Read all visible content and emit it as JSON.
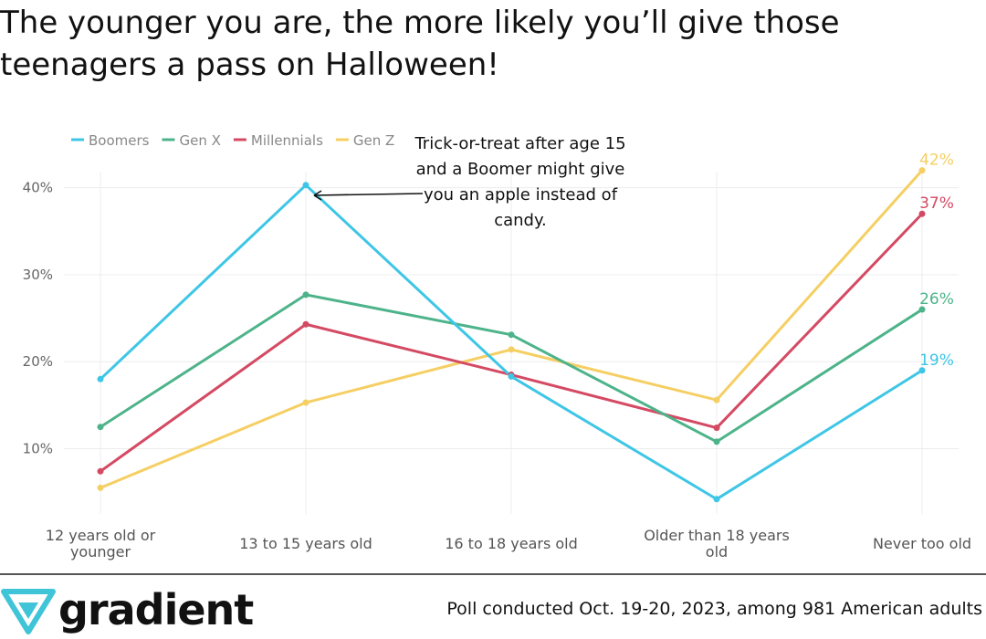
{
  "title": "The younger you are, the more likely you’ll give those\nteenagers a pass on Halloween!",
  "annotation": "Trick-or-treat after age 15 and a Boomer might give you an apple instead of candy.",
  "brand": {
    "name": "gradient",
    "color": "#3fc4d8"
  },
  "source": "Poll conducted Oct. 19-20, 2023, among 981 American adults",
  "chart_data": {
    "type": "line",
    "categories": [
      "12 years old or younger",
      "13 to 15 years old",
      "16 to 18 years old",
      "Older than 18 years old",
      "Never too old"
    ],
    "category_lines": [
      [
        "12 years old or",
        "younger"
      ],
      [
        "13 to 15 years old"
      ],
      [
        "16 to 18 years old"
      ],
      [
        "Older than 18 years",
        "old"
      ],
      [
        "Never too old"
      ]
    ],
    "series": [
      {
        "name": "Boomers",
        "color": "#3ec6e6",
        "values": [
          18,
          40.3,
          18.3,
          4.2,
          19
        ]
      },
      {
        "name": "Gen X",
        "color": "#4db38a",
        "values": [
          12.5,
          27.7,
          23.1,
          10.8,
          26
        ]
      },
      {
        "name": "Millennials",
        "color": "#d44a63",
        "values": [
          7.4,
          24.3,
          18.5,
          12.4,
          37
        ]
      },
      {
        "name": "Gen Z",
        "color": "#f5cf63",
        "values": [
          5.5,
          15.3,
          21.4,
          15.6,
          42
        ]
      }
    ],
    "end_labels": [
      "19%",
      "26%",
      "37%",
      "42%"
    ],
    "yticks": [
      10,
      20,
      30,
      40
    ],
    "ytick_labels": [
      "10%",
      "20%",
      "30%",
      "40%"
    ],
    "ylim": [
      2.5,
      45
    ],
    "grid": true,
    "legend": "top-left"
  }
}
